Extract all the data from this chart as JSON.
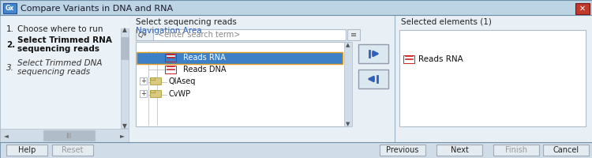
{
  "title": "Compare Variants in DNA and RNA",
  "titlebar_color": "#bdd4e4",
  "titlebar_gradient_top": "#cfe0ed",
  "close_btn_color": "#c0392b",
  "bg_color": "#d6e4ef",
  "content_bg": "#e8f0f6",
  "left_panel_bg": "#eaf1f7",
  "white": "#ffffff",
  "light_gray": "#e8edf2",
  "mid_gray": "#b0bcc8",
  "dark_gray": "#505860",
  "border_color": "#7090a8",
  "highlight_color": "#3d80c8",
  "highlight_border": "#e8a020",
  "icon_red_color": "#cc2020",
  "icon_blue_color": "#3060b8",
  "nav_area_label_color": "#3060b8",
  "section_title": "Select sequencing reads",
  "nav_area_label": "Navigation Area",
  "search_placeholder": "<enter search term>",
  "tree_items": [
    "Reads RNA",
    "Reads DNA",
    "QIAseq",
    "CvWP"
  ],
  "selected_panel_title": "Selected elements (1)",
  "selected_item": "Reads RNA",
  "buttons_bottom": [
    "Help",
    "Reset",
    "Previous",
    "Next",
    "Finish",
    "Cancel"
  ],
  "left_panel_items": [
    {
      "num": "1.",
      "text": "Choose where to run",
      "bold": false,
      "italic": false
    },
    {
      "num": "2.",
      "text": "Select Trimmed RNA\nsequencing reads",
      "bold": true,
      "italic": false
    },
    {
      "num": "3.",
      "text": "Select Trimmed DNA\nsequencing reads",
      "bold": false,
      "italic": true
    }
  ],
  "gx_icon_bg": "#4488cc",
  "arrow_btn_bg": "#dce8f0",
  "arrow_btn_border": "#909aaa",
  "scrollbar_bg": "#d0dce8",
  "scrollbar_thumb": "#b0bcc8",
  "btn_bg": "#e4ecf2",
  "btn_border": "#a0aab4"
}
